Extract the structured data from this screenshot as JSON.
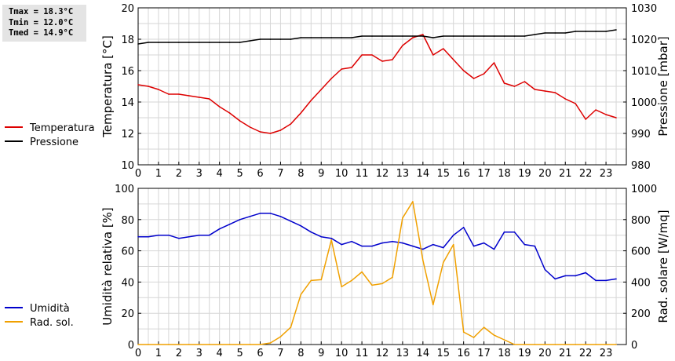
{
  "stats": {
    "tmax": "Tmax = 18.3°C",
    "tmin": "Tmin = 12.0°C",
    "tmed": "Tmed = 14.9°C"
  },
  "chart_data": [
    {
      "type": "line",
      "panel": "top",
      "ylabel": "Temperatura [°C]",
      "y2label": "Pressione [mbar]",
      "xlim": [
        0,
        24
      ],
      "ylim": [
        10,
        20
      ],
      "y2lim": [
        980,
        1030
      ],
      "x_ticks": [
        0,
        1,
        2,
        3,
        4,
        5,
        6,
        7,
        8,
        9,
        10,
        11,
        12,
        13,
        14,
        15,
        16,
        17,
        18,
        19,
        20,
        21,
        22,
        23
      ],
      "y_ticks": [
        10,
        12,
        14,
        16,
        18,
        20
      ],
      "y2_ticks": [
        980,
        990,
        1000,
        1010,
        1020,
        1030
      ],
      "grid": true,
      "legend_position": "left",
      "series": [
        {
          "name": "Temperatura",
          "axis": "left",
          "color": "#dd0000",
          "x": [
            0,
            0.5,
            1,
            1.5,
            2,
            2.5,
            3,
            3.5,
            4,
            4.5,
            5,
            5.5,
            6,
            6.5,
            7,
            7.5,
            8,
            8.5,
            9,
            9.5,
            10,
            10.5,
            11,
            11.5,
            12,
            12.5,
            13,
            13.5,
            14,
            14.5,
            15,
            15.5,
            16,
            16.5,
            17,
            17.5,
            18,
            18.5,
            19,
            19.5,
            20,
            20.5,
            21,
            21.5,
            22,
            22.5,
            23,
            23.5
          ],
          "values": [
            15.1,
            15.0,
            14.8,
            14.5,
            14.5,
            14.4,
            14.3,
            14.2,
            13.7,
            13.3,
            12.8,
            12.4,
            12.1,
            12.0,
            12.2,
            12.6,
            13.3,
            14.1,
            14.8,
            15.5,
            16.1,
            16.2,
            17.0,
            17.0,
            16.6,
            16.7,
            17.6,
            18.1,
            18.3,
            17.0,
            17.4,
            16.7,
            16.0,
            15.5,
            15.8,
            16.5,
            15.2,
            15.0,
            15.3,
            14.8,
            14.7,
            14.6,
            14.2,
            13.9,
            12.9,
            13.5,
            13.2,
            13.0
          ]
        },
        {
          "name": "Pressione",
          "axis": "right",
          "color": "#000000",
          "x": [
            0,
            0.5,
            1,
            1.5,
            2,
            2.5,
            3,
            3.5,
            4,
            4.5,
            5,
            5.5,
            6,
            6.5,
            7,
            7.5,
            8,
            8.5,
            9,
            9.5,
            10,
            10.5,
            11,
            11.5,
            12,
            12.5,
            13,
            13.5,
            14,
            14.5,
            15,
            15.5,
            16,
            16.5,
            17,
            17.5,
            18,
            18.5,
            19,
            19.5,
            20,
            20.5,
            21,
            21.5,
            22,
            22.5,
            23,
            23.5
          ],
          "values": [
            1018.5,
            1019,
            1019,
            1019,
            1019,
            1019,
            1019,
            1019,
            1019,
            1019,
            1019,
            1019.5,
            1020,
            1020,
            1020,
            1020,
            1020.5,
            1020.5,
            1020.5,
            1020.5,
            1020.5,
            1020.5,
            1021,
            1021,
            1021,
            1021,
            1021,
            1021,
            1021,
            1020.5,
            1021,
            1021,
            1021,
            1021,
            1021,
            1021,
            1021,
            1021,
            1021,
            1021.5,
            1022,
            1022,
            1022,
            1022.5,
            1022.5,
            1022.5,
            1022.5,
            1023
          ]
        }
      ]
    },
    {
      "type": "line",
      "panel": "bottom",
      "ylabel": "Umidità relativa [%]",
      "y2label": "Rad. solare [W/mq]",
      "xlim": [
        0,
        24
      ],
      "ylim": [
        0,
        100
      ],
      "y2lim": [
        0,
        1000
      ],
      "x_ticks": [
        0,
        1,
        2,
        3,
        4,
        5,
        6,
        7,
        8,
        9,
        10,
        11,
        12,
        13,
        14,
        15,
        16,
        17,
        18,
        19,
        20,
        21,
        22,
        23
      ],
      "y_ticks": [
        0,
        20,
        40,
        60,
        80,
        100
      ],
      "y2_ticks": [
        0,
        200,
        400,
        600,
        800,
        1000
      ],
      "grid": true,
      "legend_position": "left",
      "series": [
        {
          "name": "Umidità",
          "axis": "left",
          "color": "#0000cc",
          "x": [
            0,
            0.5,
            1,
            1.5,
            2,
            2.5,
            3,
            3.5,
            4,
            4.5,
            5,
            5.5,
            6,
            6.5,
            7,
            7.5,
            8,
            8.5,
            9,
            9.5,
            10,
            10.5,
            11,
            11.5,
            12,
            12.5,
            13,
            13.5,
            14,
            14.5,
            15,
            15.5,
            16,
            16.5,
            17,
            17.5,
            18,
            18.5,
            19,
            19.5,
            20,
            20.5,
            21,
            21.5,
            22,
            22.5,
            23,
            23.5
          ],
          "values": [
            69,
            69,
            70,
            70,
            68,
            69,
            70,
            70,
            74,
            77,
            80,
            82,
            84,
            84,
            82,
            79,
            76,
            72,
            69,
            68,
            64,
            66,
            63,
            63,
            65,
            66,
            65,
            63,
            61,
            64,
            62,
            70,
            75,
            63,
            65,
            61,
            72,
            72,
            64,
            63,
            48,
            42,
            44,
            44,
            46,
            41,
            41,
            42
          ]
        },
        {
          "name": "Rad. sol.",
          "axis": "right",
          "color": "#f0a000",
          "x": [
            0,
            0.5,
            1,
            1.5,
            2,
            2.5,
            3,
            3.5,
            4,
            4.5,
            5,
            5.5,
            6,
            6.5,
            7,
            7.5,
            8,
            8.5,
            9,
            9.5,
            10,
            10.5,
            11,
            11.5,
            12,
            12.5,
            13,
            13.5,
            14,
            14.5,
            15,
            15.5,
            16,
            16.5,
            17,
            17.5,
            18,
            18.5,
            19,
            19.5,
            20,
            20.5,
            21,
            21.5,
            22,
            22.5,
            23,
            23.5
          ],
          "values": [
            0,
            0,
            0,
            0,
            0,
            0,
            0,
            0,
            0,
            0,
            0,
            0,
            0,
            10,
            50,
            110,
            320,
            410,
            415,
            670,
            370,
            410,
            465,
            380,
            390,
            430,
            810,
            915,
            540,
            255,
            525,
            640,
            80,
            45,
            110,
            60,
            30,
            0,
            0,
            0,
            0,
            0,
            0,
            0,
            0,
            0,
            0,
            0
          ]
        }
      ]
    }
  ]
}
